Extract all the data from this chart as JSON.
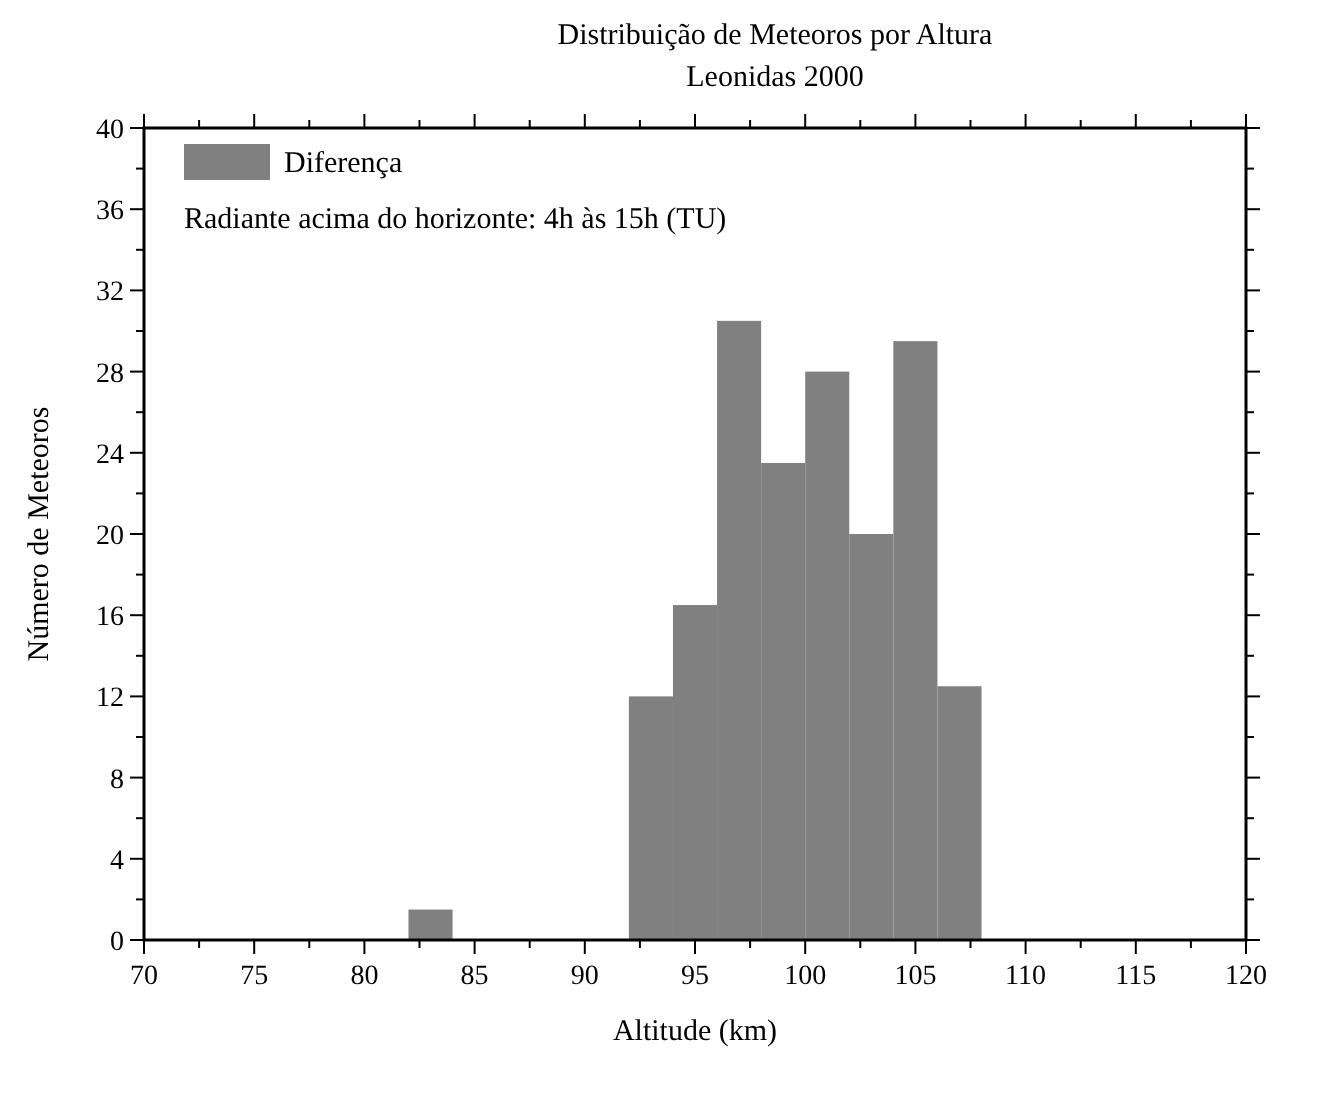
{
  "chart_data": {
    "type": "histogram",
    "title": "Distribuição de Meteoros por Altura",
    "subtitle": "Leonidas 2000",
    "xlabel": "Altitude (km)",
    "ylabel": "Número de Meteoros",
    "series": [
      {
        "name": "Diferença",
        "color": "#808080",
        "values": [
          1.5,
          0,
          0,
          0,
          0,
          12,
          16.5,
          30.5,
          23.5,
          28,
          20,
          29.5,
          12.5
        ]
      }
    ],
    "bins": [
      82,
      84,
      86,
      88,
      90,
      92,
      94,
      96,
      98,
      100,
      102,
      104,
      106,
      108
    ],
    "annotations": [
      "Radiante acima do horizonte: 4h às 15h (TU)"
    ],
    "xlim": [
      70,
      120
    ],
    "xticks": [
      70,
      {
        "value": 72.5,
        "label": null
      },
      75,
      {
        "value": 77.5,
        "label": null
      },
      80,
      {
        "value": 82.5,
        "label": null
      },
      85,
      {
        "value": 87.5,
        "label": null
      },
      90,
      {
        "value": 92.5,
        "label": null
      },
      95,
      {
        "value": 97.5,
        "label": null
      },
      100,
      {
        "value": 102.5,
        "label": null
      },
      105,
      {
        "value": 107.5,
        "label": null
      },
      110,
      {
        "value": 112.5,
        "label": null
      },
      115,
      {
        "value": 117.5,
        "label": null
      },
      120
    ],
    "ylim": [
      0,
      40
    ],
    "yticks": [
      0,
      {
        "value": 2,
        "label": null
      },
      4,
      {
        "value": 6,
        "label": null
      },
      8,
      {
        "value": 10,
        "label": null
      },
      12,
      {
        "value": 14,
        "label": null
      },
      16,
      {
        "value": 18,
        "label": null
      },
      20,
      {
        "value": 22,
        "label": null
      },
      24,
      {
        "value": 26,
        "label": null
      },
      28,
      {
        "value": 30,
        "label": null
      },
      32,
      {
        "value": 34,
        "label": null
      },
      36,
      {
        "value": 38,
        "label": null
      },
      40
    ],
    "legend": "top left"
  }
}
